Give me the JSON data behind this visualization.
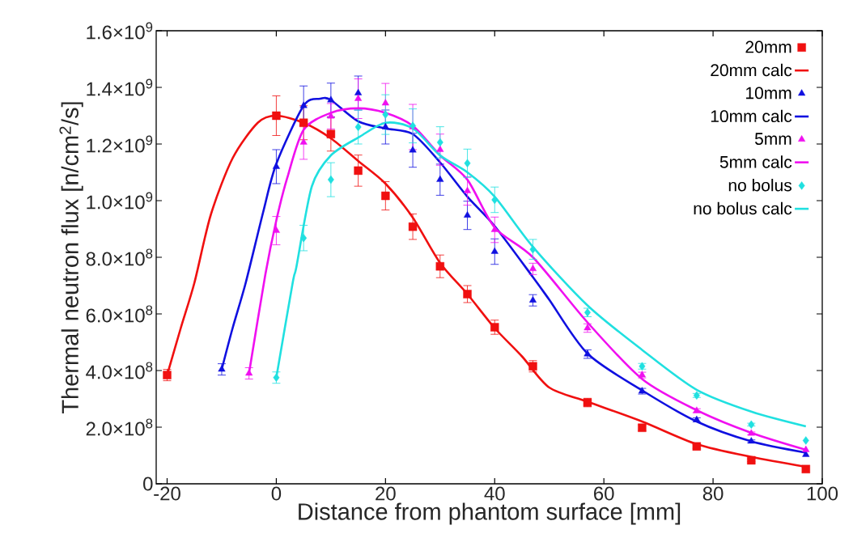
{
  "chart_data": {
    "type": "scatter",
    "xlabel": "Distance from phantom surface [mm]",
    "ylabel": "Thermal neutron flux [n/cm$^{2}$/s]",
    "xlim": [
      -22,
      100
    ],
    "xticks": [
      -20,
      0,
      20,
      40,
      60,
      80,
      100
    ],
    "ylim": [
      0,
      1600000000.0
    ],
    "yticks": [
      0,
      {
        "value": 200000000.0,
        "label": "2.0×10$^{8}$"
      },
      {
        "value": 400000000.0,
        "label": "4.0×10$^{8}$"
      },
      {
        "value": 600000000.0,
        "label": "6.0×10$^{8}$"
      },
      {
        "value": 800000000.0,
        "label": "8.0×10$^{8}$"
      },
      {
        "value": 1000000000.0,
        "label": "1.0×10$^{9}$"
      },
      {
        "value": 1200000000.0,
        "label": "1.2×10$^{9}$"
      },
      {
        "value": 1400000000.0,
        "label": "1.4×10$^{9}$"
      },
      {
        "value": 1600000000.0,
        "label": "1.6×10$^{9}$"
      }
    ],
    "legend": "top right",
    "series": [
      {
        "name": "20mm",
        "color": "#f01010",
        "marker": "square",
        "x": [
          -20,
          0,
          5,
          10,
          15,
          20,
          25,
          30,
          35,
          40,
          47,
          57,
          67,
          77,
          87,
          97
        ],
        "values": [
          384000000.0,
          1300000000.0,
          1275000000.0,
          1235000000.0,
          1106000000.0,
          1017000000.0,
          908000000.0,
          768000000.0,
          670000000.0,
          553000000.0,
          415000000.0,
          287000000.0,
          198000000.0,
          132000000.0,
          83000000.0,
          52000000.0
        ],
        "errors": [
          20000000.0,
          70000000.0,
          60000000.0,
          60000000.0,
          55000000.0,
          50000000.0,
          45000000.0,
          40000000.0,
          30000000.0,
          25000000.0,
          20000000.0,
          15000000.0,
          10000000.0,
          7000000.0,
          5000000.0,
          null
        ]
      },
      {
        "name": "20mm calc",
        "type": "line",
        "color": "#f01010",
        "marker": "none",
        "line_style": "solid",
        "x": [
          -20,
          -17.5,
          -15,
          -12,
          -8,
          -3.4,
          0,
          5,
          10,
          15,
          20,
          25,
          30,
          35,
          40,
          45,
          50,
          57,
          67,
          77,
          87,
          97
        ],
        "values": [
          384000000.0,
          550000000.0,
          710000000.0,
          950000000.0,
          1150000000.0,
          1275000000.0,
          1300000000.0,
          1275000000.0,
          1220000000.0,
          1140000000.0,
          1060000000.0,
          940000000.0,
          780000000.0,
          670000000.0,
          550000000.0,
          450000000.0,
          340000000.0,
          290000000.0,
          220000000.0,
          140000000.0,
          95000000.0,
          60000000.0
        ]
      },
      {
        "name": "10mm",
        "color": "#1010e0",
        "marker": "triangle",
        "x": [
          -10,
          0,
          5,
          10,
          15,
          20,
          25,
          30,
          35,
          40,
          47,
          57,
          67,
          77,
          87,
          97
        ],
        "values": [
          404000000.0,
          1120000000.0,
          1335000000.0,
          1355000000.0,
          1380000000.0,
          1260000000.0,
          1178000000.0,
          1074000000.0,
          948000000.0,
          820000000.0,
          648000000.0,
          458000000.0,
          327000000.0,
          226000000.0,
          150000000.0,
          103000000.0
        ],
        "errors": [
          20000000.0,
          60000000.0,
          70000000.0,
          60000000.0,
          60000000.0,
          60000000.0,
          60000000.0,
          55000000.0,
          50000000.0,
          45000000.0,
          20000000.0,
          15000000.0,
          10000000.0,
          7000000.0,
          5000000.0,
          null
        ]
      },
      {
        "name": "10mm calc",
        "type": "line",
        "color": "#1010e0",
        "marker": "none",
        "line_style": "solid",
        "x": [
          -10,
          -8,
          -5.6,
          -2.4,
          0,
          5,
          8,
          10,
          15,
          20,
          25,
          30,
          35,
          40,
          47,
          50,
          57,
          67,
          77,
          87,
          97
        ],
        "values": [
          404000000.0,
          550000000.0,
          710000000.0,
          960000000.0,
          1130000000.0,
          1335000000.0,
          1360000000.0,
          1355000000.0,
          1280000000.0,
          1255000000.0,
          1235000000.0,
          1135000000.0,
          1014000000.0,
          910000000.0,
          730000000.0,
          650000000.0,
          460000000.0,
          330000000.0,
          220000000.0,
          150000000.0,
          110000000.0
        ]
      },
      {
        "name": "5mm",
        "color": "#f010f0",
        "marker": "triangle",
        "x": [
          -5,
          0,
          5,
          10,
          15,
          20,
          25,
          30,
          35,
          40,
          47,
          57,
          67,
          77,
          87,
          97
        ],
        "values": [
          390000000.0,
          894000000.0,
          1206000000.0,
          1298000000.0,
          1360000000.0,
          1344000000.0,
          1260000000.0,
          1180000000.0,
          1034000000.0,
          897000000.0,
          759000000.0,
          550000000.0,
          384000000.0,
          258000000.0,
          178000000.0,
          120000000.0
        ],
        "errors": [
          20000000.0,
          50000000.0,
          60000000.0,
          45000000.0,
          70000000.0,
          70000000.0,
          80000000.0,
          55000000.0,
          50000000.0,
          45000000.0,
          20000000.0,
          15000000.0,
          10000000.0,
          7000000.0,
          5000000.0,
          null
        ]
      },
      {
        "name": "5mm calc",
        "type": "line",
        "color": "#f010f0",
        "marker": "none",
        "line_style": "solid",
        "x": [
          -5,
          -2,
          0,
          2,
          5,
          10,
          15,
          20,
          25,
          30,
          35,
          40,
          47,
          57,
          67,
          77,
          87,
          97
        ],
        "values": [
          390000000.0,
          740000000.0,
          930000000.0,
          1080000000.0,
          1250000000.0,
          1310000000.0,
          1326000000.0,
          1310000000.0,
          1264000000.0,
          1160000000.0,
          1074000000.0,
          905000000.0,
          800000000.0,
          570000000.0,
          370000000.0,
          260000000.0,
          180000000.0,
          120000000.0
        ]
      },
      {
        "name": "no bolus",
        "color": "#20e0e0",
        "marker": "diamond",
        "x": [
          0,
          5,
          10,
          15,
          20,
          25,
          30,
          35,
          40,
          47,
          57,
          67,
          77,
          87,
          97
        ],
        "values": [
          375000000.0,
          868000000.0,
          1074000000.0,
          1260000000.0,
          1304000000.0,
          1264000000.0,
          1206000000.0,
          1132000000.0,
          1003000000.0,
          828000000.0,
          605000000.0,
          415000000.0,
          312000000.0,
          209000000.0,
          153000000.0
        ],
        "errors": [
          20000000.0,
          45000000.0,
          60000000.0,
          60000000.0,
          70000000.0,
          60000000.0,
          55000000.0,
          50000000.0,
          45000000.0,
          35000000.0,
          15000000.0,
          10000000.0,
          7000000.0,
          5000000.0,
          null
        ]
      },
      {
        "name": "no bolus calc",
        "type": "line",
        "color": "#20e0e0",
        "marker": "none",
        "line_style": "solid",
        "x": [
          0,
          3,
          3.7,
          6.5,
          10,
          15.3,
          20,
          25,
          30,
          35,
          40,
          47,
          57,
          67,
          77,
          87,
          97
        ],
        "values": [
          375000000.0,
          710000000.0,
          768000000.0,
          1050000000.0,
          1160000000.0,
          1226000000.0,
          1275000000.0,
          1255000000.0,
          1160000000.0,
          1100000000.0,
          1014000000.0,
          837000000.0,
          630000000.0,
          473000000.0,
          332000000.0,
          255000000.0,
          203000000.0
        ]
      }
    ]
  }
}
